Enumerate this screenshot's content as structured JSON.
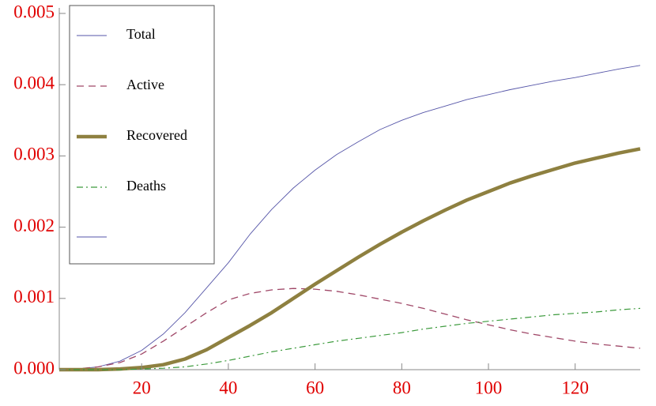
{
  "chart_data": {
    "type": "line",
    "x": [
      1,
      5,
      10,
      15,
      20,
      25,
      30,
      35,
      40,
      45,
      50,
      55,
      60,
      65,
      70,
      75,
      80,
      85,
      90,
      95,
      100,
      105,
      110,
      115,
      120,
      125,
      130,
      135
    ],
    "series": [
      {
        "name": "Total",
        "color": "#5656a8",
        "values": [
          0,
          1e-05,
          4e-05,
          0.00012,
          0.00027,
          0.0005,
          0.0008,
          0.00115,
          0.0015,
          0.0019,
          0.00225,
          0.00255,
          0.0028,
          0.00302,
          0.0032,
          0.00337,
          0.0035,
          0.00361,
          0.0037,
          0.00379,
          0.00386,
          0.00393,
          0.00399,
          0.00405,
          0.0041,
          0.00416,
          0.00422,
          0.00427
        ]
      },
      {
        "name": "Active",
        "color": "#a04868",
        "values": [
          0,
          1e-05,
          4e-05,
          0.0001,
          0.00022,
          0.0004,
          0.0006,
          0.0008,
          0.00098,
          0.00107,
          0.00112,
          0.00114,
          0.00113,
          0.0011,
          0.00105,
          0.00099,
          0.00093,
          0.00086,
          0.00078,
          0.0007,
          0.00063,
          0.00056,
          0.0005,
          0.00045,
          0.0004,
          0.00036,
          0.00033,
          0.0003
        ]
      },
      {
        "name": "Recovered",
        "color": "#8e8040",
        "values": [
          0,
          0,
          0,
          1e-05,
          3e-05,
          7e-05,
          0.00015,
          0.00028,
          0.00045,
          0.00062,
          0.0008,
          0.001,
          0.0012,
          0.00139,
          0.00158,
          0.00176,
          0.00193,
          0.00209,
          0.00224,
          0.00238,
          0.0025,
          0.00262,
          0.00272,
          0.00281,
          0.0029,
          0.00297,
          0.00304,
          0.0031
        ]
      },
      {
        "name": "Deaths",
        "color": "#3c9a3c",
        "values": [
          0,
          0,
          0,
          0,
          1e-05,
          2e-05,
          4e-05,
          8e-05,
          0.00013,
          0.00019,
          0.00025,
          0.0003,
          0.00035,
          0.0004,
          0.00044,
          0.00048,
          0.00052,
          0.00057,
          0.00061,
          0.00065,
          0.00068,
          0.00071,
          0.00074,
          0.00077,
          0.00079,
          0.00081,
          0.00084,
          0.00086
        ]
      }
    ],
    "xlim": [
      1,
      135
    ],
    "xticks": [
      20,
      40,
      60,
      80,
      100,
      120
    ],
    "ylim": [
      0,
      0.005
    ],
    "yticks": [
      {
        "value": 0,
        "label": "0.000"
      },
      {
        "value": 0.001,
        "label": "0.001"
      },
      {
        "value": 0.002,
        "label": "0.002"
      },
      {
        "value": 0.003,
        "label": "0.003"
      },
      {
        "value": 0.004,
        "label": "0.004"
      },
      {
        "value": 0.005,
        "label": "0.005"
      }
    ],
    "legend": "upper left",
    "grid": false
  }
}
